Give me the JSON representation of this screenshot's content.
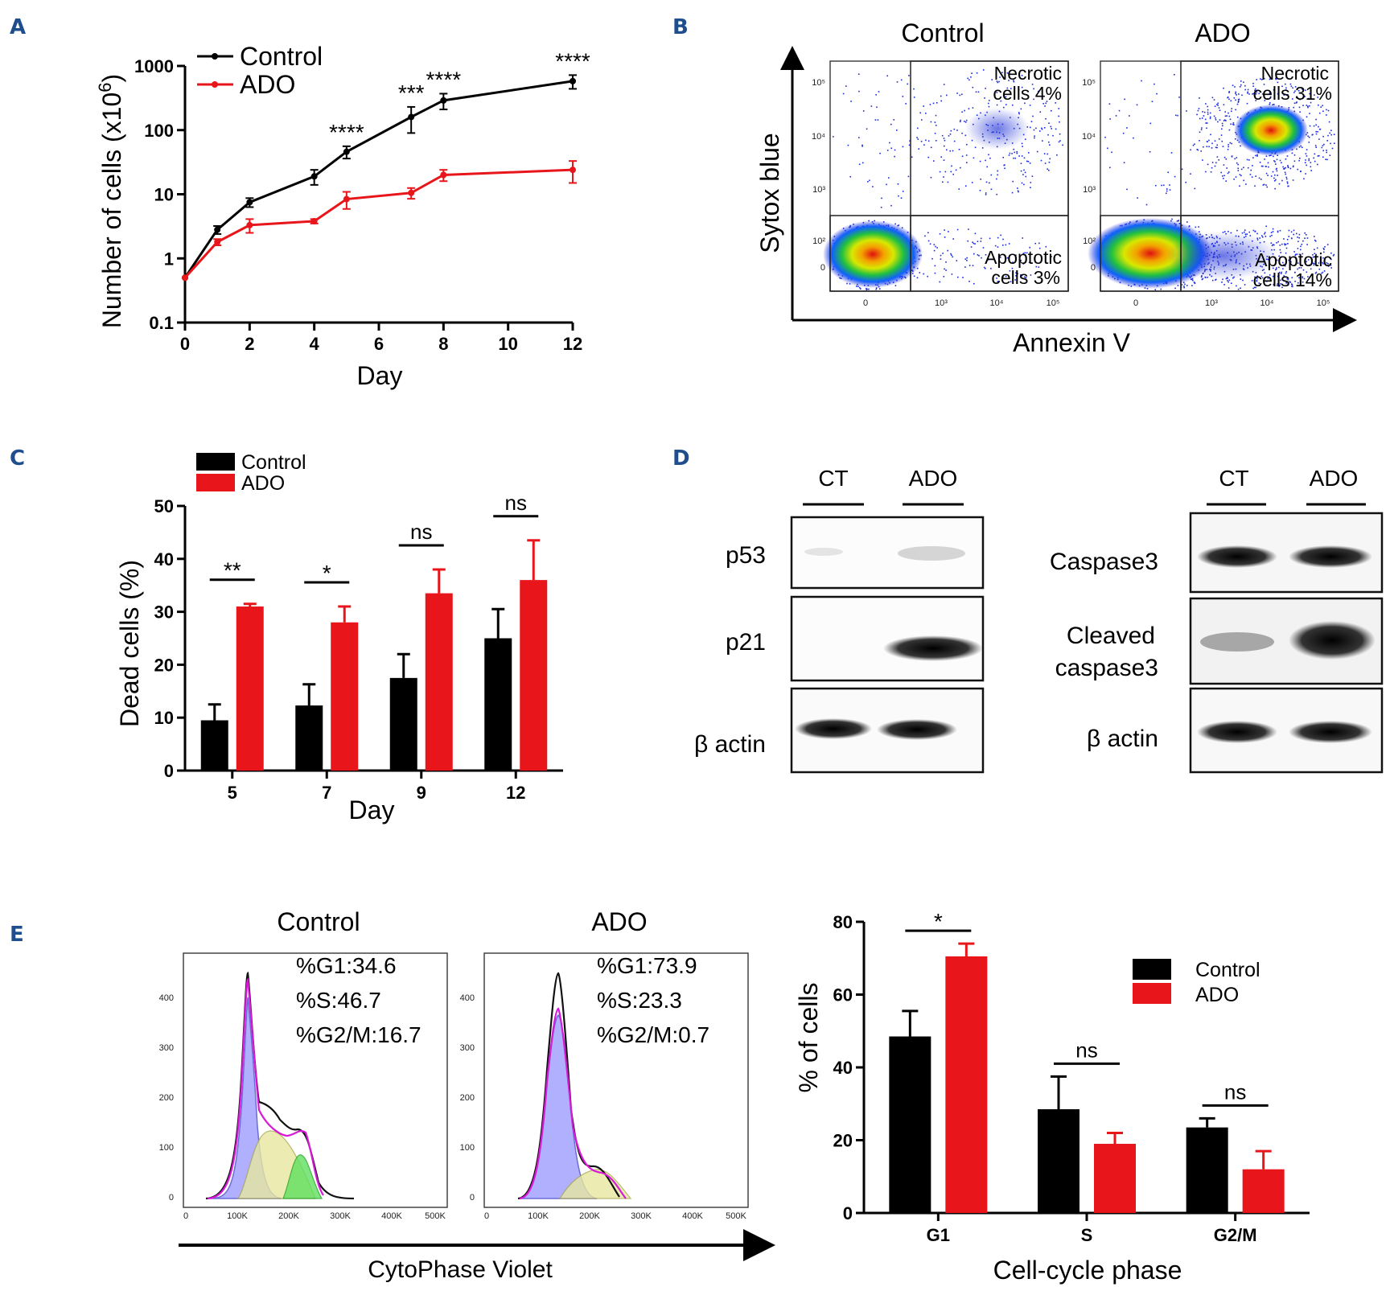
{
  "colors": {
    "control": "#000000",
    "ado": "#e8161b",
    "panel_label": "#1f4e8c"
  },
  "panelA": {
    "label": "A",
    "legend": [
      "Control",
      "ADO"
    ],
    "chart_data": {
      "type": "line",
      "xlabel": "Day",
      "ylabel": "Number of cells (x10",
      "ylabel_sup": "6",
      "ylabel_close": ")",
      "yscale": "log",
      "ylim": [
        0.1,
        1000
      ],
      "xlim": [
        0,
        12
      ],
      "xticks": [
        "0",
        "2",
        "4",
        "6",
        "8",
        "10",
        "12"
      ],
      "yticks": [
        "0.1",
        "1",
        "10",
        "100",
        "1000"
      ],
      "series": [
        {
          "name": "Control",
          "x": [
            0,
            1,
            2,
            4,
            5,
            7,
            8,
            12
          ],
          "y": [
            0.5,
            2.8,
            7.5,
            19,
            46,
            160,
            290,
            580
          ],
          "err": [
            0,
            0.4,
            1.2,
            5,
            10,
            70,
            80,
            140
          ]
        },
        {
          "name": "ADO",
          "x": [
            0,
            1,
            2,
            4,
            5,
            7,
            8,
            12
          ],
          "y": [
            0.5,
            1.8,
            3.3,
            3.8,
            8.4,
            10.5,
            20,
            24
          ],
          "err": [
            0,
            0.2,
            0.8,
            0.3,
            2.5,
            2,
            4,
            9
          ]
        }
      ],
      "annotations": [
        {
          "x": 5,
          "text": "****"
        },
        {
          "x": 7,
          "text": "***"
        },
        {
          "x": 8,
          "text": "****"
        },
        {
          "x": 12,
          "text": "****"
        }
      ]
    }
  },
  "panelB": {
    "label": "B",
    "titles": [
      "Control",
      "ADO"
    ],
    "xlabel": "Annexin V",
    "ylabel": "Sytox blue",
    "gates": {
      "control": {
        "necrotic": [
          "Necrotic",
          "cells 4%"
        ],
        "apoptotic": [
          "Apoptotic",
          "cells 3%"
        ]
      },
      "ado": {
        "necrotic": [
          "Necrotic",
          "cells 31%"
        ],
        "apoptotic": [
          "Apoptotic",
          "cells 14%"
        ]
      }
    },
    "y_ticks": [
      "10⁵",
      "10⁴",
      "10³",
      "10²",
      "0"
    ],
    "x_ticks": [
      "0",
      "10³",
      "10⁴",
      "10⁵"
    ]
  },
  "panelC": {
    "label": "C",
    "legend": [
      "Control",
      "ADO"
    ],
    "chart_data": {
      "type": "bar",
      "xlabel": "Day",
      "ylabel": "Dead cells (%)",
      "ylim": [
        0,
        50
      ],
      "yticks": [
        "0",
        "10",
        "20",
        "30",
        "40",
        "50"
      ],
      "categories": [
        "5",
        "7",
        "9",
        "12"
      ],
      "series": [
        {
          "name": "Control",
          "values": [
            9.5,
            12.3,
            17.5,
            25
          ],
          "err": [
            3,
            4,
            4.5,
            5.5
          ]
        },
        {
          "name": "ADO",
          "values": [
            31,
            28,
            33.5,
            36
          ],
          "err": [
            0.5,
            3,
            4.5,
            7.5
          ]
        }
      ],
      "significance": [
        "**",
        "*",
        "ns",
        "ns"
      ]
    }
  },
  "panelD": {
    "label": "D",
    "left": {
      "lanes": [
        "CT",
        "ADO"
      ],
      "rows": [
        "p53",
        "p21",
        "β actin"
      ]
    },
    "right": {
      "lanes": [
        "CT",
        "ADO"
      ],
      "rows": [
        "Caspase3",
        "Cleaved",
        "caspase3",
        "β actin"
      ]
    }
  },
  "panelE": {
    "label": "E",
    "hist_control": {
      "title": "Control",
      "stats": [
        "%G1:34.6",
        "%S:46.7",
        "%G2/M:16.7"
      ],
      "yticks": [
        "400",
        "300",
        "200",
        "100",
        "0"
      ]
    },
    "hist_ado": {
      "title": "ADO",
      "stats": [
        "%G1:73.9",
        "%S:23.3",
        "%G2/M:0.7"
      ],
      "yticks": [
        "400",
        "300",
        "200",
        "100",
        "0"
      ]
    },
    "hist_xticks": [
      "0",
      "100K",
      "200K",
      "300K",
      "400K",
      "500K"
    ],
    "hist_xlabel": "CytoPhase Violet",
    "legend": [
      "Control",
      "ADO"
    ],
    "chart_data": {
      "type": "bar",
      "xlabel": "Cell-cycle phase",
      "ylabel": "% of cells",
      "ylim": [
        0,
        80
      ],
      "yticks": [
        "0",
        "20",
        "40",
        "60",
        "80"
      ],
      "categories": [
        "G1",
        "S",
        "G2/M"
      ],
      "series": [
        {
          "name": "Control",
          "values": [
            48.5,
            28.5,
            23.5
          ],
          "err": [
            7,
            9,
            2.5
          ]
        },
        {
          "name": "ADO",
          "values": [
            70.5,
            19,
            12
          ],
          "err": [
            3.5,
            3,
            5
          ]
        }
      ],
      "significance": [
        "*",
        "ns",
        "ns"
      ]
    }
  }
}
